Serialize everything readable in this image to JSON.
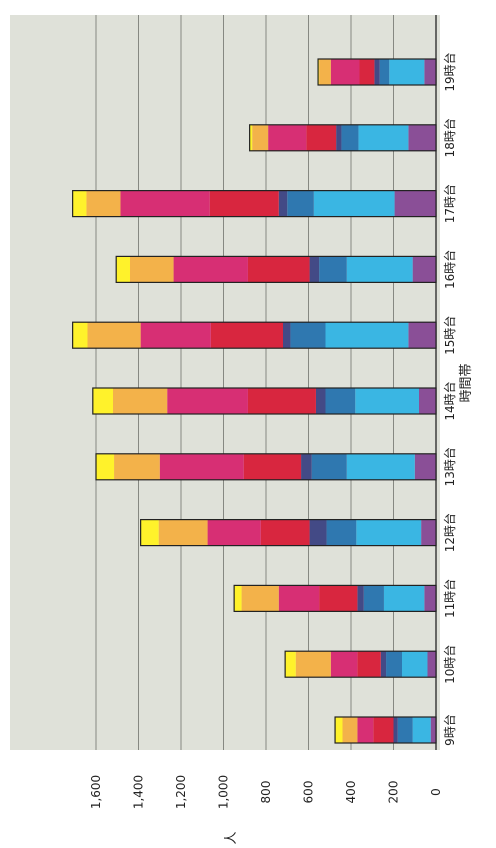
{
  "chart_data": {
    "type": "bar",
    "orientation": "horizontal-stacked",
    "title": "",
    "xlabel": "時間帯",
    "ylabel": "人",
    "ylim": [
      0,
      1600
    ],
    "yticks": [
      0,
      200,
      400,
      600,
      800,
      1000,
      1200,
      1400,
      1600
    ],
    "ytick_labels": [
      "0",
      "200",
      "400",
      "600",
      "800",
      "1,000",
      "1,200",
      "1,400",
      "1,600"
    ],
    "grid": true,
    "categories": [
      "9時台",
      "10時台",
      "11時台",
      "12時台",
      "13時台",
      "14時台",
      "15時台",
      "16時台",
      "17時台",
      "18時台",
      "19時台"
    ],
    "colors": [
      "#8a4f97",
      "#3ab6e3",
      "#2f78b0",
      "#434a86",
      "#d8263f",
      "#d72f74",
      "#f3b24a",
      "#fff22b"
    ],
    "series": [
      {
        "values": [
          25,
          40,
          55,
          70,
          100,
          80,
          130,
          110,
          195,
          130,
          55
        ]
      },
      {
        "values": [
          85,
          120,
          190,
          305,
          320,
          300,
          390,
          310,
          380,
          235,
          165
        ]
      },
      {
        "values": [
          70,
          75,
          95,
          140,
          165,
          140,
          165,
          130,
          125,
          80,
          45
        ]
      },
      {
        "values": [
          20,
          25,
          30,
          80,
          50,
          45,
          35,
          45,
          40,
          25,
          25
        ]
      },
      {
        "values": [
          95,
          110,
          180,
          230,
          270,
          320,
          340,
          290,
          325,
          140,
          70
        ]
      },
      {
        "values": [
          75,
          125,
          190,
          250,
          395,
          380,
          330,
          350,
          420,
          180,
          135
        ]
      },
      {
        "values": [
          70,
          165,
          175,
          230,
          215,
          255,
          250,
          205,
          160,
          75,
          55
        ]
      },
      {
        "values": [
          35,
          50,
          35,
          85,
          85,
          95,
          70,
          65,
          65,
          12,
          5
        ]
      }
    ]
  }
}
